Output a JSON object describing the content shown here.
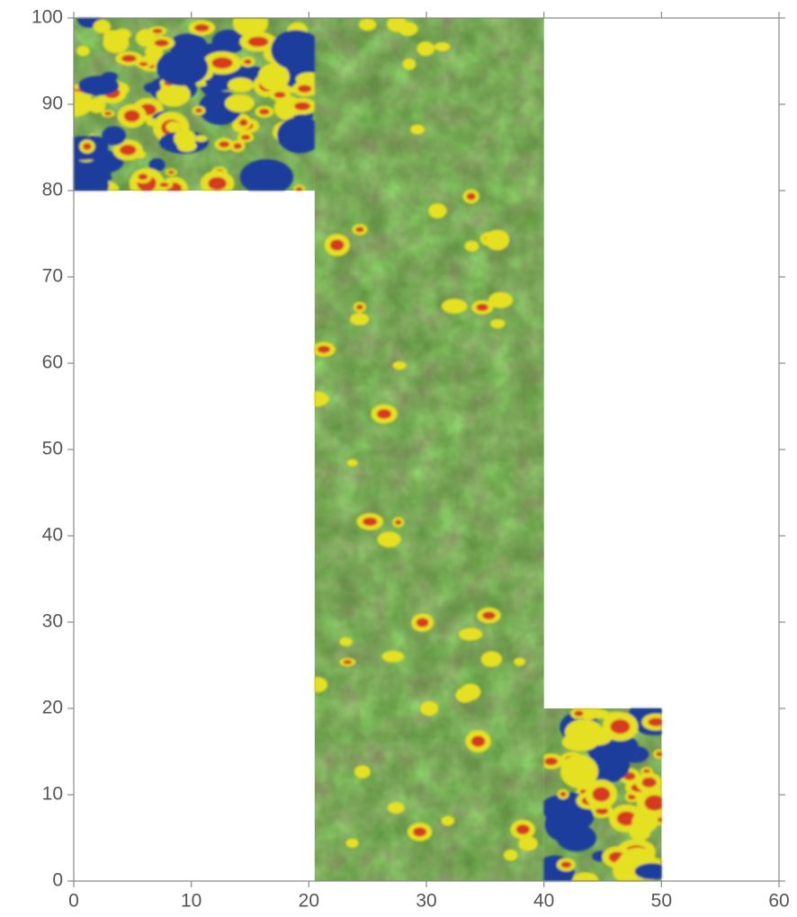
{
  "chart_data": {
    "type": "heatmap",
    "xlim": [
      0,
      60
    ],
    "ylim": [
      0,
      100
    ],
    "xticks": [
      0,
      10,
      20,
      30,
      40,
      50,
      60
    ],
    "yticks": [
      0,
      10,
      20,
      30,
      40,
      50,
      60,
      70,
      80,
      90,
      100
    ],
    "regions": [
      {
        "x": [
          0,
          20.5
        ],
        "y": [
          80,
          100
        ]
      },
      {
        "x": [
          20.5,
          40
        ],
        "y": [
          0,
          100
        ]
      },
      {
        "x": [
          40,
          50
        ],
        "y": [
          0,
          20
        ]
      }
    ],
    "color": "#5b8c3c"
  }
}
